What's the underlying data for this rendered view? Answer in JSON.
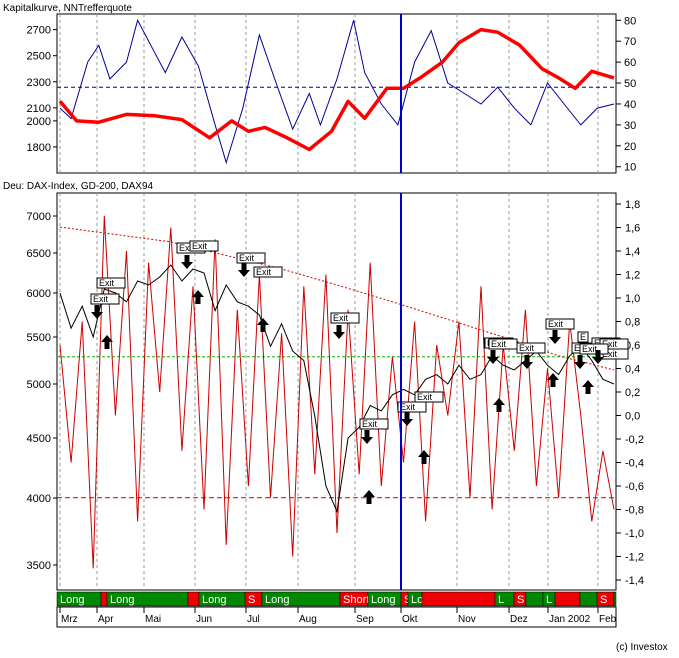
{
  "top": {
    "title": "Kapitalkurve,  NNTrefferquote",
    "left_ticks": [
      1800,
      2000,
      2100,
      2300,
      2500,
      2700
    ],
    "right_ticks": [
      10,
      20,
      30,
      40,
      50,
      60,
      70,
      80
    ],
    "left_range": [
      1600,
      2820
    ],
    "right_range": [
      7,
      83
    ],
    "ref_level": 48,
    "colors": {
      "kapitalkurve": "#ff0000",
      "trefferquote": "#000099",
      "ref": "#000099"
    }
  },
  "bottom": {
    "title": "Deu: DAX-Index,  GD-200,  DAX94",
    "left_ticks": [
      3500,
      4000,
      4500,
      5000,
      5500,
      6000,
      6500,
      7000
    ],
    "right_ticks": [
      "-1,4",
      "-1,2",
      "-1,0",
      "-0,8",
      "-0,6",
      "-0,4",
      "-0,2",
      "0,0",
      "0,2",
      "0,4",
      "0,6",
      "0,8",
      "1,0",
      "1,2",
      "1,4",
      "1,6",
      "1,8"
    ],
    "right_range": [
      -1.5,
      1.85
    ],
    "green_level": 0.5,
    "red_level": -0.7,
    "colors": {
      "dax": "#000000",
      "gd200": "#cc0000",
      "dax94": "#cc0000",
      "green": "#00bb00"
    }
  },
  "signals": {
    "exit_label": "Exit",
    "boxes": [
      "Exit",
      "Exit",
      "Exit",
      "Exit",
      "Exit",
      "Exit",
      "Exit",
      "Exit",
      "Exit",
      "Exit",
      "Exit",
      "Exit",
      "Exit",
      "Exit",
      "E",
      "Exit",
      "Exit",
      "Exit",
      "Exit",
      "Exit",
      "Exit"
    ]
  },
  "positions": [
    {
      "label": "Long",
      "type": "long"
    },
    {
      "label": "",
      "type": "short"
    },
    {
      "label": "Long",
      "type": "long"
    },
    {
      "label": "",
      "type": "short"
    },
    {
      "label": "Long",
      "type": "long"
    },
    {
      "label": "S",
      "type": "short"
    },
    {
      "label": "Long",
      "type": "long"
    },
    {
      "label": "Short",
      "type": "short"
    },
    {
      "label": "Long",
      "type": "long"
    },
    {
      "label": "S",
      "type": "short"
    },
    {
      "label": "Long",
      "type": "long"
    },
    {
      "label": "",
      "type": "short"
    },
    {
      "label": "L",
      "type": "long"
    },
    {
      "label": "S",
      "type": "short"
    },
    {
      "label": "",
      "type": "long"
    },
    {
      "label": "L",
      "type": "long"
    },
    {
      "label": "",
      "type": "short"
    },
    {
      "label": "",
      "type": "long"
    },
    {
      "label": "S",
      "type": "short"
    },
    {
      "label": "",
      "type": "long"
    }
  ],
  "position_colors": {
    "long": "#008800",
    "short": "#ee0000"
  },
  "months": [
    "Mrz",
    "Apr",
    "Mai",
    "Jun",
    "Jul",
    "Aug",
    "Sep",
    "Okt",
    "Nov",
    "Dez",
    "Jan 2002",
    "Feb"
  ],
  "copyright": "(c) Investox",
  "chart_data": [
    {
      "type": "line",
      "title": "Kapitalkurve,  NNTrefferquote",
      "series": [
        {
          "name": "Kapitalkurve",
          "axis": "left",
          "x": [
            0,
            0.03,
            0.07,
            0.12,
            0.17,
            0.22,
            0.27,
            0.31,
            0.34,
            0.37,
            0.41,
            0.45,
            0.49,
            0.52,
            0.55,
            0.59,
            0.62,
            0.65,
            0.69,
            0.72,
            0.76,
            0.79,
            0.83,
            0.87,
            0.9,
            0.93,
            0.96,
            1.0
          ],
          "values": [
            2150,
            2000,
            1990,
            2050,
            2040,
            2010,
            1870,
            2000,
            1920,
            1950,
            1870,
            1780,
            1920,
            2150,
            2020,
            2250,
            2250,
            2330,
            2450,
            2600,
            2700,
            2680,
            2580,
            2400,
            2330,
            2250,
            2380,
            2330
          ]
        },
        {
          "name": "NNTrefferquote",
          "axis": "right",
          "x": [
            0,
            0.02,
            0.05,
            0.07,
            0.09,
            0.12,
            0.14,
            0.17,
            0.19,
            0.22,
            0.25,
            0.28,
            0.3,
            0.33,
            0.36,
            0.39,
            0.42,
            0.45,
            0.47,
            0.5,
            0.53,
            0.55,
            0.58,
            0.61,
            0.64,
            0.67,
            0.7,
            0.73,
            0.76,
            0.79,
            0.82,
            0.85,
            0.88,
            0.91,
            0.94,
            0.97,
            1.0
          ],
          "values": [
            38,
            33,
            60,
            68,
            52,
            60,
            80,
            65,
            55,
            72,
            58,
            30,
            12,
            38,
            73,
            50,
            28,
            45,
            30,
            52,
            80,
            55,
            40,
            30,
            60,
            75,
            50,
            45,
            40,
            48,
            38,
            30,
            50,
            40,
            30,
            38,
            40
          ]
        }
      ]
    },
    {
      "type": "line",
      "title": "Deu: DAX-Index,  GD-200,  DAX94",
      "series": [
        {
          "name": "DAX-Index",
          "axis": "left",
          "x": [
            0,
            0.02,
            0.04,
            0.06,
            0.08,
            0.1,
            0.12,
            0.14,
            0.16,
            0.18,
            0.2,
            0.22,
            0.24,
            0.26,
            0.28,
            0.3,
            0.32,
            0.34,
            0.36,
            0.38,
            0.4,
            0.42,
            0.44,
            0.46,
            0.48,
            0.5,
            0.52,
            0.54,
            0.56,
            0.58,
            0.6,
            0.62,
            0.64,
            0.66,
            0.68,
            0.7,
            0.72,
            0.74,
            0.76,
            0.78,
            0.8,
            0.82,
            0.84,
            0.86,
            0.88,
            0.9,
            0.92,
            0.94,
            0.96,
            0.98,
            1.0
          ],
          "values": [
            6000,
            5600,
            5850,
            5500,
            6050,
            6000,
            5900,
            6150,
            6100,
            6200,
            6350,
            6150,
            6300,
            6250,
            5800,
            6100,
            5900,
            5850,
            5750,
            5400,
            5650,
            5350,
            5250,
            4700,
            4100,
            3900,
            4500,
            4600,
            4800,
            4750,
            4900,
            4950,
            4900,
            5050,
            5100,
            5000,
            5200,
            5050,
            5100,
            5300,
            5200,
            5150,
            5250,
            5350,
            5200,
            5100,
            5300,
            5400,
            5250,
            5050,
            5000
          ]
        },
        {
          "name": "GD-200",
          "axis": "left",
          "x": [
            0,
            0.2,
            0.4,
            0.5,
            0.6,
            0.7,
            0.8,
            0.9,
            1.0
          ],
          "values": [
            6850,
            6650,
            6300,
            6100,
            5900,
            5700,
            5500,
            5300,
            5150
          ]
        },
        {
          "name": "DAX94",
          "axis": "right",
          "x": [
            0,
            0.02,
            0.04,
            0.06,
            0.08,
            0.1,
            0.12,
            0.14,
            0.16,
            0.18,
            0.2,
            0.22,
            0.24,
            0.26,
            0.28,
            0.3,
            0.32,
            0.34,
            0.36,
            0.38,
            0.4,
            0.42,
            0.44,
            0.46,
            0.48,
            0.5,
            0.52,
            0.54,
            0.56,
            0.58,
            0.6,
            0.62,
            0.64,
            0.66,
            0.68,
            0.7,
            0.72,
            0.74,
            0.76,
            0.78,
            0.8,
            0.82,
            0.84,
            0.86,
            0.88,
            0.9,
            0.92,
            0.94,
            0.96,
            0.98,
            1.0
          ],
          "values": [
            0.6,
            -0.4,
            0.8,
            -1.3,
            1.7,
            0.0,
            1.4,
            -0.9,
            1.3,
            0.2,
            1.6,
            -0.3,
            1.1,
            -0.8,
            1.5,
            -1.1,
            0.9,
            -0.6,
            1.2,
            -0.7,
            0.7,
            -1.2,
            1.1,
            -0.5,
            1.2,
            -1.0,
            0.9,
            -0.5,
            1.3,
            -0.6,
            0.5,
            -0.4,
            0.8,
            -0.9,
            0.6,
            0.0,
            0.8,
            -0.7,
            1.1,
            -0.8,
            0.6,
            -0.3,
            0.9,
            -0.6,
            0.4,
            -0.7,
            0.8,
            0.0,
            -0.9,
            -0.3,
            -0.8
          ]
        }
      ]
    }
  ]
}
